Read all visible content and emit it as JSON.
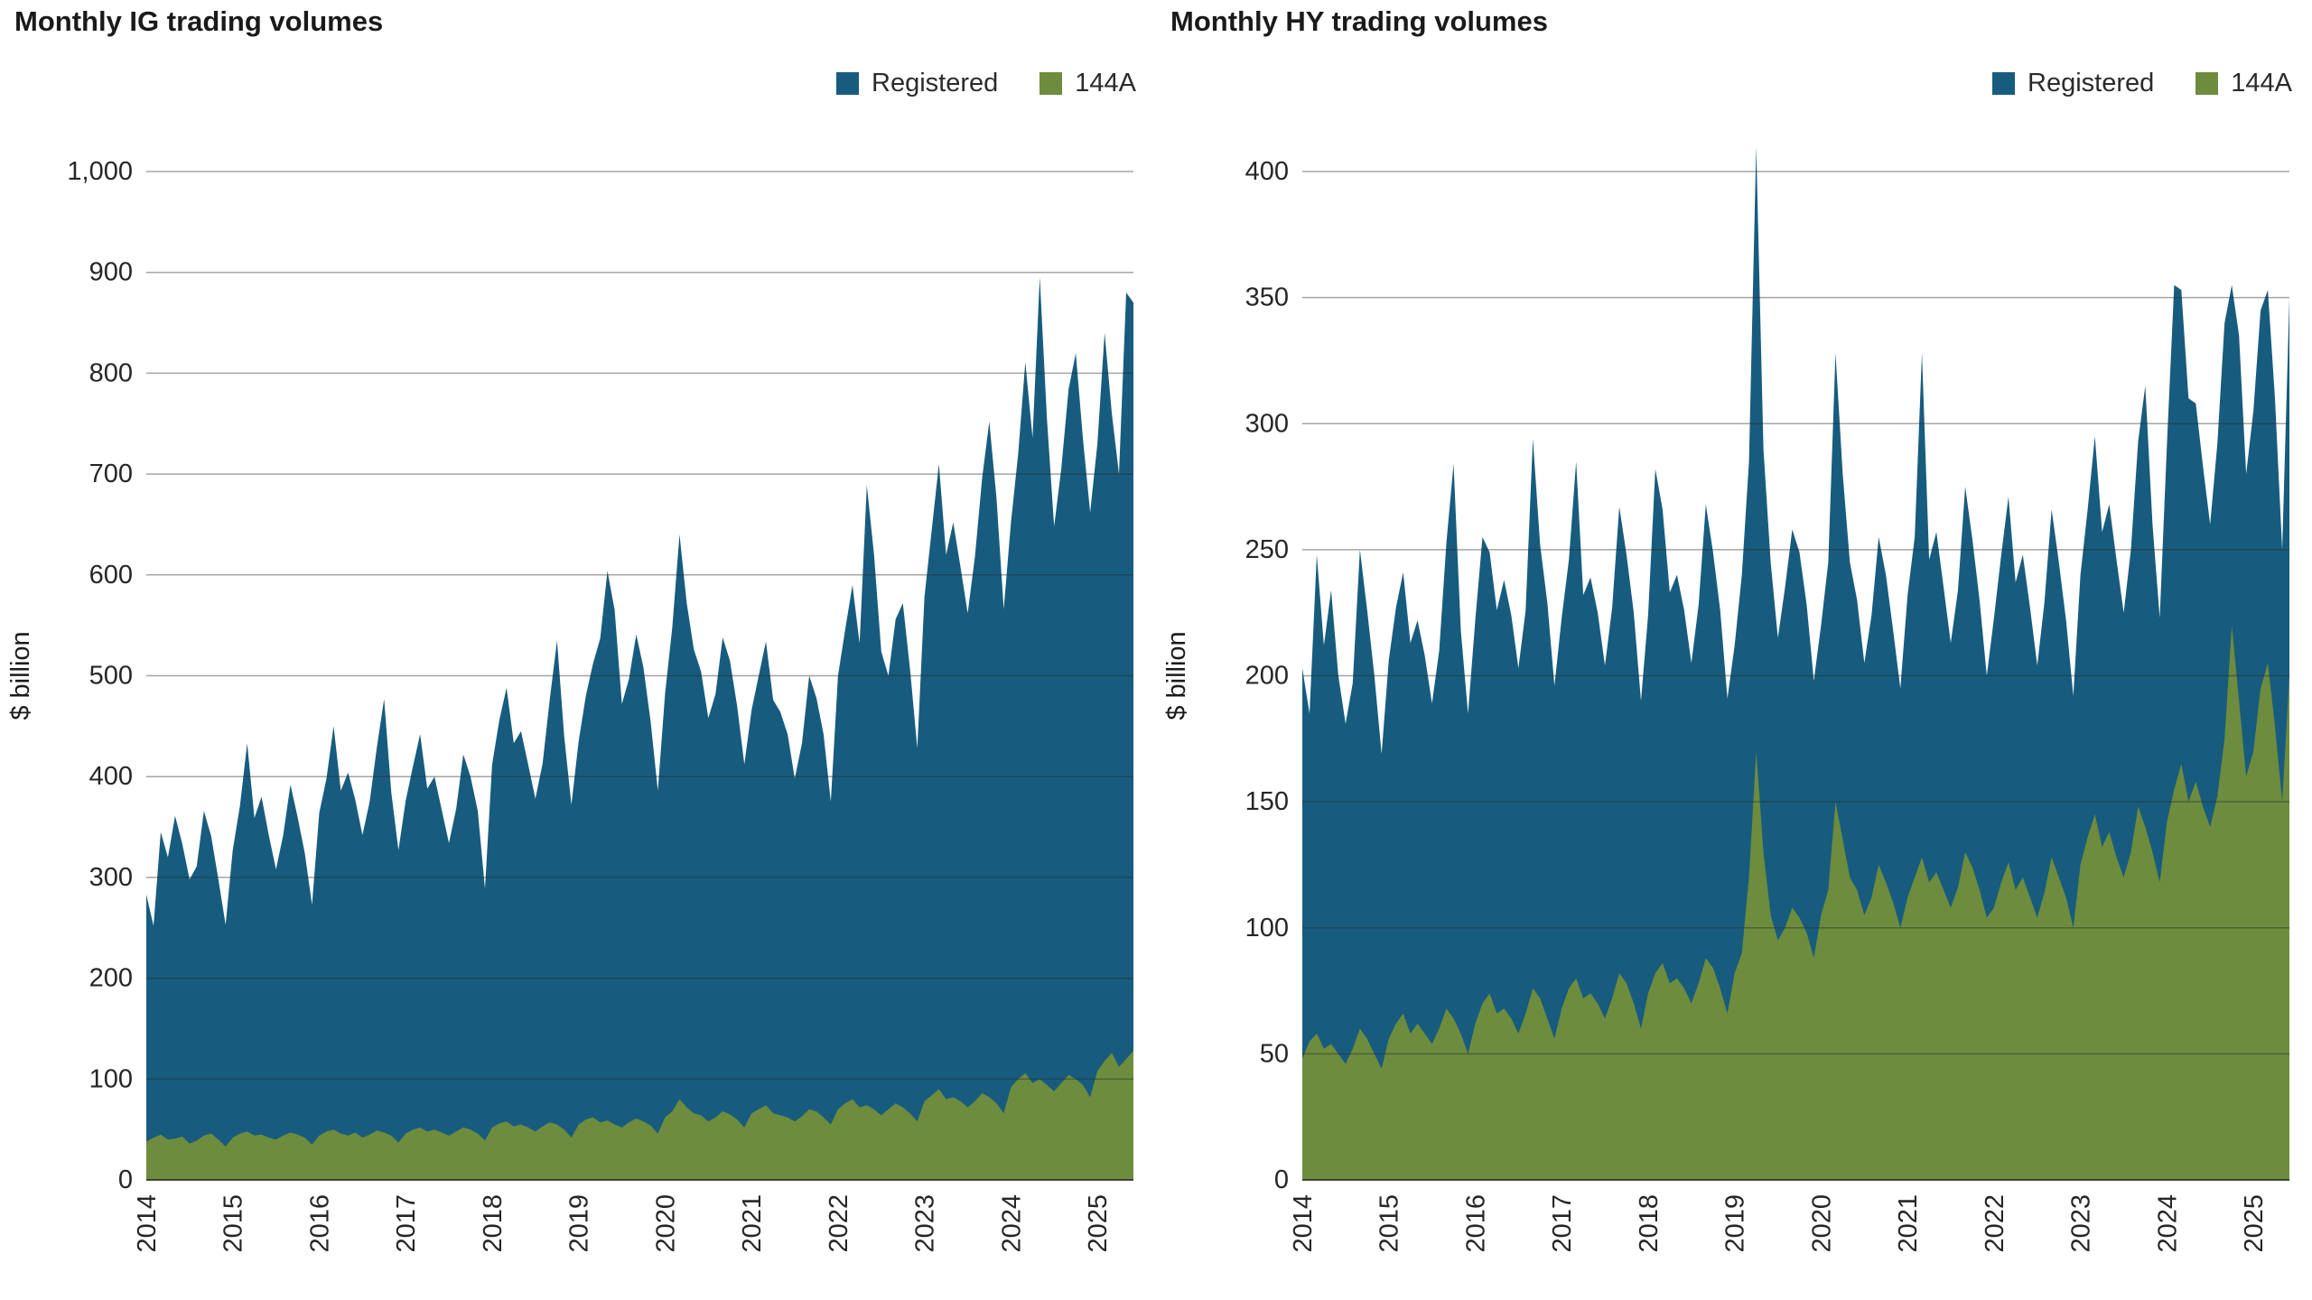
{
  "chart_data": [
    {
      "type": "area",
      "stacked": true,
      "title": "Monthly IG trading volumes",
      "ylabel": "$ billion",
      "legend_position": "top-right",
      "grid": "horizontal",
      "x_unit": "month",
      "x_start": "2014-01",
      "x_end": "2025-06",
      "xtick_labels": [
        "2014",
        "2015",
        "2016",
        "2017",
        "2018",
        "2019",
        "2020",
        "2021",
        "2022",
        "2023",
        "2024",
        "2025"
      ],
      "ylim": [
        0,
        1000
      ],
      "yticks": [
        0,
        100,
        200,
        300,
        400,
        500,
        600,
        700,
        800,
        900,
        1000
      ],
      "ytick_labels": [
        "0",
        "100",
        "200",
        "300",
        "400",
        "500",
        "600",
        "700",
        "800",
        "900",
        "1,000"
      ],
      "series": [
        {
          "name": "Registered",
          "color": "#175C7E",
          "stack": "top",
          "values": [
            245,
            210,
            300,
            280,
            320,
            290,
            262,
            272,
            322,
            295,
            258,
            220,
            285,
            325,
            385,
            315,
            335,
            300,
            268,
            298,
            345,
            315,
            282,
            238,
            320,
            350,
            400,
            340,
            360,
            330,
            300,
            330,
            380,
            430,
            340,
            290,
            330,
            360,
            390,
            340,
            350,
            320,
            290,
            320,
            370,
            350,
            320,
            250,
            360,
            400,
            430,
            380,
            390,
            360,
            330,
            360,
            420,
            480,
            390,
            330,
            380,
            420,
            450,
            480,
            545,
            510,
            420,
            440,
            480,
            450,
            400,
            340,
            420,
            480,
            560,
            500,
            460,
            440,
            400,
            420,
            470,
            450,
            410,
            360,
            400,
            430,
            460,
            410,
            400,
            380,
            340,
            370,
            430,
            410,
            380,
            320,
            430,
            470,
            510,
            460,
            615,
            550,
            460,
            430,
            480,
            500,
            440,
            370,
            500,
            560,
            620,
            540,
            570,
            530,
            490,
            540,
            610,
            670,
            600,
            500,
            560,
            620,
            705,
            640,
            795,
            660,
            560,
            610,
            680,
            720,
            640,
            580,
            622,
            722,
            634,
            588,
            760,
            742
          ]
        },
        {
          "name": "144A",
          "color": "#6D8C3D",
          "stack": "bottom",
          "values": [
            38,
            42,
            45,
            40,
            41,
            43,
            36,
            39,
            44,
            46,
            40,
            33,
            42,
            46,
            48,
            44,
            45,
            42,
            40,
            44,
            47,
            45,
            42,
            35,
            44,
            48,
            50,
            46,
            44,
            47,
            42,
            45,
            49,
            47,
            44,
            37,
            46,
            50,
            52,
            48,
            50,
            47,
            44,
            48,
            52,
            50,
            46,
            39,
            52,
            56,
            58,
            53,
            55,
            52,
            48,
            53,
            57,
            55,
            50,
            42,
            55,
            60,
            62,
            57,
            59,
            55,
            52,
            57,
            61,
            58,
            54,
            46,
            62,
            68,
            80,
            72,
            66,
            64,
            58,
            62,
            68,
            65,
            60,
            52,
            66,
            70,
            74,
            66,
            64,
            62,
            58,
            63,
            70,
            68,
            62,
            55,
            70,
            76,
            80,
            72,
            74,
            70,
            64,
            70,
            76,
            72,
            66,
            58,
            78,
            84,
            90,
            80,
            82,
            78,
            72,
            78,
            86,
            82,
            76,
            66,
            92,
            100,
            106,
            96,
            100,
            94,
            88,
            96,
            104,
            100,
            94,
            82,
            108,
            118,
            126,
            112,
            120,
            128
          ]
        }
      ]
    },
    {
      "type": "area",
      "stacked": true,
      "title": "Monthly HY trading volumes",
      "ylabel": "$ billion",
      "legend_position": "top-right",
      "grid": "horizontal",
      "x_unit": "month",
      "x_start": "2014-01",
      "x_end": "2025-06",
      "xtick_labels": [
        "2014",
        "2015",
        "2016",
        "2017",
        "2018",
        "2019",
        "2020",
        "2021",
        "2022",
        "2023",
        "2024",
        "2025"
      ],
      "ylim": [
        0,
        400
      ],
      "yticks": [
        0,
        50,
        100,
        150,
        200,
        250,
        300,
        350,
        400
      ],
      "ytick_labels": [
        "0",
        "50",
        "100",
        "150",
        "200",
        "250",
        "300",
        "350",
        "400"
      ],
      "series": [
        {
          "name": "Registered",
          "color": "#175C7E",
          "stack": "top",
          "values": [
            155,
            130,
            190,
            160,
            180,
            150,
            135,
            145,
            190,
            170,
            150,
            125,
            150,
            165,
            175,
            155,
            160,
            150,
            135,
            150,
            185,
            220,
            160,
            135,
            160,
            185,
            175,
            160,
            170,
            160,
            145,
            160,
            218,
            180,
            165,
            140,
            155,
            170,
            205,
            160,
            165,
            155,
            140,
            155,
            185,
            170,
            155,
            130,
            150,
            200,
            180,
            155,
            160,
            150,
            135,
            150,
            180,
            165,
            150,
            125,
            130,
            150,
            165,
            240,
            160,
            140,
            120,
            135,
            150,
            145,
            130,
            110,
            115,
            130,
            178,
            145,
            125,
            115,
            100,
            112,
            130,
            122,
            108,
            95,
            120,
            135,
            200,
            128,
            135,
            120,
            105,
            118,
            145,
            130,
            115,
            96,
            115,
            130,
            145,
            122,
            128,
            115,
            100,
            115,
            138,
            125,
            110,
            92,
            115,
            130,
            150,
            125,
            130,
            118,
            105,
            120,
            145,
            175,
            130,
            105,
            150,
            200,
            188,
            160,
            150,
            135,
            120,
            140,
            165,
            135,
            145,
            120,
            135,
            150,
            148,
            130,
            100,
            150
          ]
        },
        {
          "name": "144A",
          "color": "#6D8C3D",
          "stack": "bottom",
          "values": [
            48,
            55,
            58,
            52,
            54,
            50,
            46,
            52,
            60,
            56,
            50,
            44,
            56,
            62,
            66,
            58,
            62,
            58,
            54,
            60,
            68,
            64,
            58,
            50,
            62,
            70,
            74,
            66,
            68,
            64,
            58,
            66,
            76,
            72,
            64,
            56,
            68,
            76,
            80,
            72,
            74,
            70,
            64,
            72,
            82,
            78,
            70,
            60,
            74,
            82,
            86,
            78,
            80,
            76,
            70,
            78,
            88,
            84,
            76,
            66,
            82,
            90,
            120,
            170,
            130,
            105,
            95,
            100,
            108,
            104,
            98,
            88,
            105,
            115,
            150,
            135,
            120,
            115,
            105,
            112,
            125,
            118,
            110,
            100,
            112,
            120,
            128,
            118,
            122,
            115,
            108,
            116,
            130,
            124,
            115,
            104,
            108,
            118,
            126,
            115,
            120,
            112,
            104,
            114,
            128,
            120,
            112,
            100,
            125,
            136,
            145,
            132,
            138,
            128,
            120,
            130,
            148,
            140,
            130,
            118,
            142,
            155,
            165,
            150,
            158,
            148,
            140,
            152,
            175,
            220,
            190,
            160,
            170,
            195,
            205,
            180,
            150,
            200
          ]
        }
      ]
    }
  ]
}
